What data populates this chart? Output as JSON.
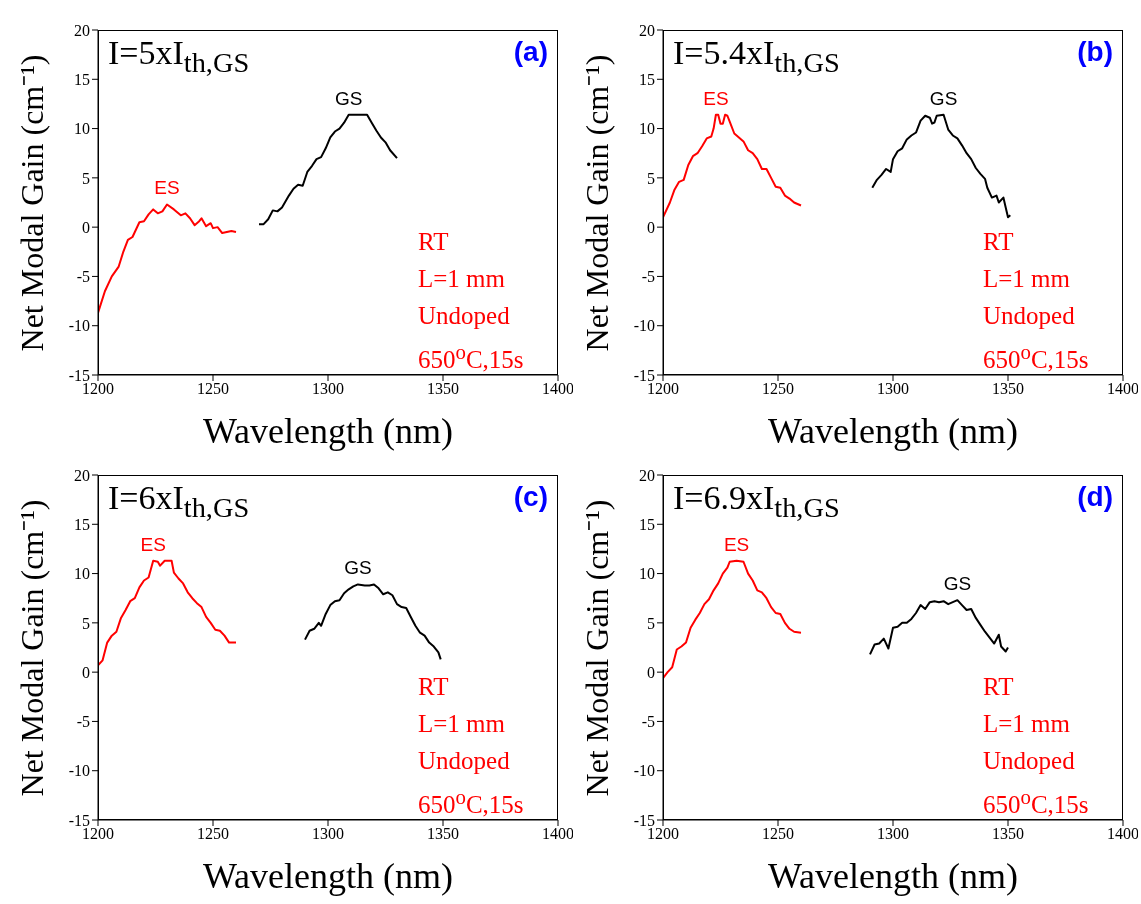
{
  "chart_data": [
    {
      "type": "line",
      "title": "I=5xI$_{th,GS}$",
      "xlabel": "Wavelength (nm)",
      "ylabel": "Net Modal Gain (cm⁻¹)",
      "xlim": [
        1200,
        1400
      ],
      "xticks": [
        1200,
        1250,
        1300,
        1350,
        1400
      ],
      "ylim": [
        -15,
        20
      ],
      "yticks": [
        -15,
        -10,
        -5,
        0,
        5,
        10,
        15,
        20
      ],
      "marker": "none",
      "line_style": "solid",
      "annotations": [
        "(a)",
        "RT",
        "L=1 mm",
        "Undoped",
        "650$^{o}$C,15s"
      ],
      "series": [
        {
          "name": "ES",
          "color": "#ff0000",
          "x": [
            1200,
            1203,
            1206,
            1209,
            1211,
            1213,
            1215,
            1218,
            1220,
            1222,
            1224,
            1226,
            1228,
            1230,
            1233,
            1236,
            1238,
            1240,
            1242,
            1244,
            1245,
            1247,
            1249,
            1250,
            1252,
            1254,
            1256,
            1258,
            1260
          ],
          "values": [
            -8.7,
            -6.5,
            -5,
            -4,
            -2.5,
            -1.3,
            -1,
            0.5,
            0.6,
            1.3,
            1.8,
            1.4,
            1.6,
            2.3,
            1.8,
            1.2,
            1.4,
            0.9,
            0.2,
            0.6,
            0.9,
            0.1,
            0.4,
            -0.1,
            0,
            -0.6,
            -0.5,
            -0.4,
            -0.5
          ]
        },
        {
          "name": "GS",
          "color": "#000000",
          "x": [
            1270,
            1272,
            1274,
            1276,
            1278,
            1280,
            1283,
            1285,
            1287,
            1289,
            1291,
            1293,
            1295,
            1297,
            1299,
            1301,
            1303,
            1305,
            1307,
            1309,
            1313,
            1317,
            1319,
            1321,
            1323,
            1325,
            1327,
            1330
          ],
          "values": [
            0.3,
            0.3,
            0.8,
            1.7,
            1.6,
            2.0,
            3.2,
            3.9,
            4.3,
            4.2,
            5.6,
            6.2,
            6.9,
            7.1,
            8.0,
            9.1,
            9.7,
            10.0,
            10.6,
            11.4,
            11.4,
            11.4,
            10.6,
            9.8,
            9.1,
            8.6,
            7.8,
            7.0
          ]
        }
      ]
    },
    {
      "type": "line",
      "title": "I=5.4xI$_{th,GS}$",
      "xlabel": "Wavelength (nm)",
      "ylabel": "Net Modal Gain (cm⁻¹)",
      "xlim": [
        1200,
        1400
      ],
      "xticks": [
        1200,
        1250,
        1300,
        1350,
        1400
      ],
      "ylim": [
        -15,
        20
      ],
      "yticks": [
        -15,
        -10,
        -5,
        0,
        5,
        10,
        15,
        20
      ],
      "marker": "none",
      "line_style": "solid",
      "annotations": [
        "(b)",
        "RT",
        "L=1 mm",
        "Undoped",
        "650$^{o}$C,15s"
      ],
      "series": [
        {
          "name": "ES",
          "color": "#ff0000",
          "x": [
            1200,
            1203,
            1205,
            1207,
            1209,
            1211,
            1213,
            1215,
            1217,
            1219,
            1221,
            1222,
            1223,
            1224,
            1225,
            1226,
            1227,
            1228,
            1229,
            1231,
            1233,
            1235,
            1237,
            1239,
            1241,
            1243,
            1245,
            1247,
            1249,
            1251,
            1253,
            1255,
            1257,
            1260
          ],
          "values": [
            1,
            2.5,
            3.8,
            4.6,
            4.8,
            6.3,
            7.2,
            7.5,
            8.2,
            9.0,
            9.2,
            10.0,
            11.4,
            11.4,
            10.5,
            10.5,
            11.4,
            11.3,
            10.7,
            9.5,
            9.1,
            8.7,
            7.8,
            7.5,
            6.9,
            5.9,
            5.9,
            5.0,
            4.1,
            4.0,
            3.2,
            2.9,
            2.5,
            2.2
          ]
        },
        {
          "name": "GS",
          "color": "#000000",
          "x": [
            1291,
            1293,
            1295,
            1297,
            1299,
            1300,
            1302,
            1304,
            1306,
            1308,
            1310,
            1312,
            1314,
            1316,
            1317,
            1318,
            1319,
            1322,
            1324,
            1326,
            1328,
            1330,
            1332,
            1334,
            1336,
            1338,
            1340,
            1341,
            1343,
            1345,
            1346,
            1348,
            1349,
            1350,
            1351
          ],
          "values": [
            4.0,
            4.8,
            5.3,
            5.9,
            5.6,
            6.9,
            7.7,
            8.0,
            8.9,
            9.3,
            9.6,
            10.8,
            11.3,
            11.1,
            10.5,
            10.6,
            11.3,
            11.4,
            9.9,
            9.3,
            9.0,
            8.3,
            7.5,
            6.9,
            6.0,
            5.4,
            4.9,
            4.0,
            3.0,
            3.2,
            2.5,
            3.0,
            2.0,
            1.0,
            1.2
          ]
        }
      ]
    },
    {
      "type": "line",
      "title": "I=6xI$_{th,GS}$",
      "xlabel": "Wavelength (nm)",
      "ylabel": "Net Modal Gain (cm⁻¹)",
      "xlim": [
        1200,
        1400
      ],
      "xticks": [
        1200,
        1250,
        1300,
        1350,
        1400
      ],
      "ylim": [
        -15,
        20
      ],
      "yticks": [
        -15,
        -10,
        -5,
        0,
        5,
        10,
        15,
        20
      ],
      "marker": "none",
      "line_style": "solid",
      "annotations": [
        "(c)",
        "RT",
        "L=1 mm",
        "Undoped",
        "650$^{o}$C,15s"
      ],
      "series": [
        {
          "name": "ES",
          "color": "#ff0000",
          "x": [
            1200,
            1202,
            1204,
            1206,
            1208,
            1210,
            1212,
            1214,
            1216,
            1218,
            1220,
            1222,
            1224,
            1226,
            1227,
            1229,
            1232,
            1233,
            1235,
            1237,
            1239,
            1241,
            1243,
            1245,
            1247,
            1249,
            1251,
            1253,
            1255,
            1257,
            1260
          ],
          "values": [
            0.7,
            1.2,
            3.0,
            3.7,
            4.1,
            5.5,
            6.3,
            7.2,
            7.5,
            8.6,
            9.3,
            9.6,
            11.3,
            11.2,
            10.8,
            11.3,
            11.3,
            10.1,
            9.5,
            9.0,
            8.1,
            7.5,
            7.0,
            6.6,
            5.6,
            5.0,
            4.3,
            4.2,
            3.7,
            3.0,
            3.0
          ]
        },
        {
          "name": "GS",
          "color": "#000000",
          "x": [
            1290,
            1292,
            1294,
            1296,
            1297,
            1299,
            1301,
            1303,
            1305,
            1307,
            1309,
            1311,
            1313,
            1316,
            1318,
            1320,
            1322,
            1324,
            1326,
            1328,
            1330,
            1332,
            1334,
            1336,
            1338,
            1340,
            1342,
            1344,
            1346,
            1348,
            1349
          ],
          "values": [
            3.3,
            4.2,
            4.4,
            5.0,
            4.7,
            5.9,
            6.8,
            7.2,
            7.3,
            8.0,
            8.4,
            8.7,
            8.9,
            8.8,
            8.8,
            8.9,
            8.5,
            7.9,
            8.1,
            7.8,
            6.9,
            6.6,
            6.5,
            5.6,
            4.7,
            4.0,
            3.7,
            3.0,
            2.6,
            2.0,
            1.3
          ]
        }
      ]
    },
    {
      "type": "line",
      "title": "I=6.9xI$_{th,GS}$",
      "xlabel": "Wavelength (nm)",
      "ylabel": "Net Modal Gain (cm⁻¹)",
      "xlim": [
        1200,
        1400
      ],
      "xticks": [
        1200,
        1250,
        1300,
        1350,
        1400
      ],
      "ylim": [
        -15,
        20
      ],
      "yticks": [
        -15,
        -10,
        -5,
        0,
        5,
        10,
        15,
        20
      ],
      "marker": "none",
      "line_style": "solid",
      "annotations": [
        "(d)",
        "RT",
        "L=1 mm",
        "Undoped",
        "650$^{o}$C,15s"
      ],
      "series": [
        {
          "name": "ES",
          "color": "#ff0000",
          "x": [
            1200,
            1202,
            1204,
            1206,
            1208,
            1210,
            1212,
            1214,
            1216,
            1218,
            1220,
            1222,
            1224,
            1226,
            1228,
            1229,
            1232,
            1235,
            1237,
            1239,
            1241,
            1243,
            1245,
            1247,
            1249,
            1251,
            1253,
            1255,
            1257,
            1260
          ],
          "values": [
            -0.6,
            0,
            0.5,
            2.3,
            2.6,
            3.0,
            4.5,
            5.3,
            6.0,
            6.9,
            7.4,
            8.3,
            9.0,
            10.0,
            10.6,
            11.2,
            11.3,
            11.2,
            10.0,
            9.3,
            8.3,
            8.1,
            7.5,
            6.6,
            6.0,
            5.9,
            5.0,
            4.4,
            4.1,
            4.0
          ]
        },
        {
          "name": "GS",
          "color": "#000000",
          "x": [
            1290,
            1292,
            1294,
            1296,
            1298,
            1300,
            1302,
            1304,
            1306,
            1308,
            1310,
            1312,
            1314,
            1316,
            1318,
            1320,
            1322,
            1324,
            1326,
            1328,
            1330,
            1332,
            1334,
            1336,
            1338,
            1340,
            1342,
            1344,
            1346,
            1347,
            1349,
            1350
          ],
          "values": [
            1.8,
            2.8,
            2.9,
            3.4,
            2.4,
            4.5,
            4.6,
            5.0,
            5.0,
            5.4,
            6.0,
            6.8,
            6.4,
            7.1,
            7.2,
            7.1,
            7.2,
            6.9,
            7.1,
            7.3,
            6.8,
            6.3,
            6.4,
            5.5,
            4.8,
            4.1,
            3.5,
            2.9,
            3.8,
            2.6,
            2.1,
            2.5
          ]
        }
      ]
    }
  ]
}
